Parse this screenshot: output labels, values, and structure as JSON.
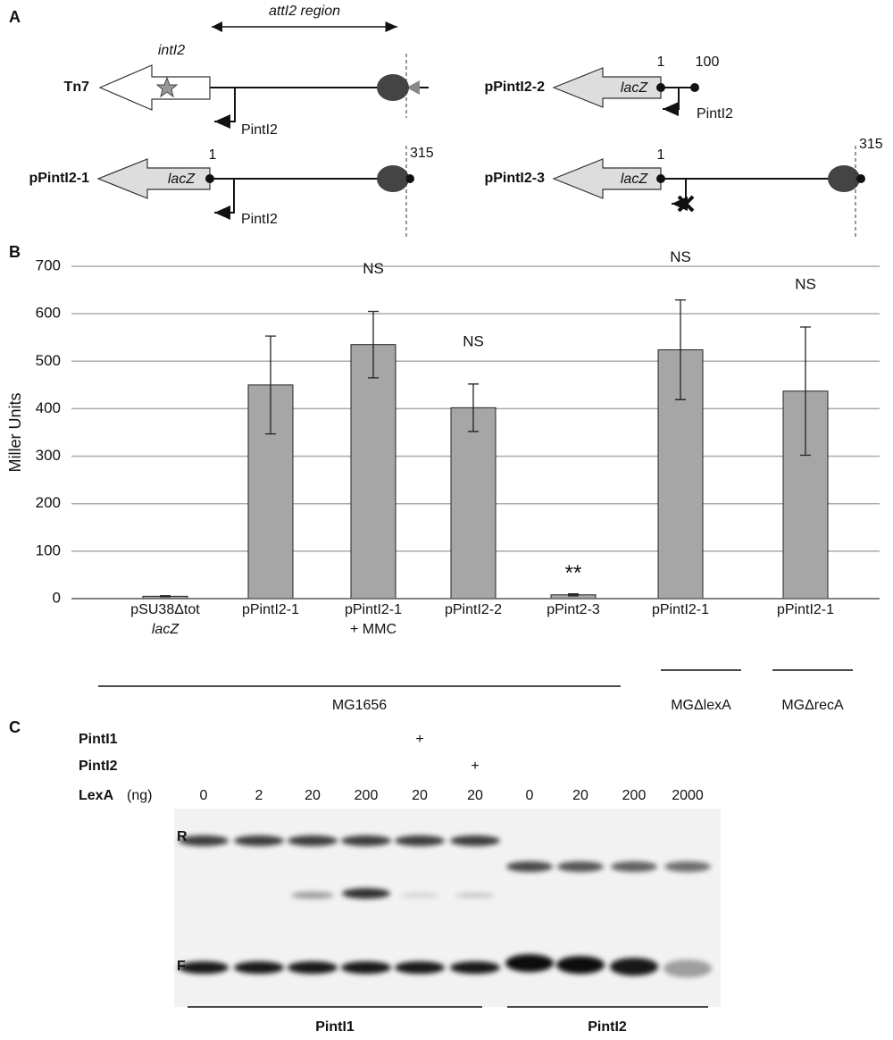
{
  "panel_a": {
    "label": "A",
    "region": "attI2 region",
    "constructs": [
      {
        "name": "Tn7",
        "gene": "intI2",
        "promoter": "PintI2"
      },
      {
        "name": "pPintI2-1",
        "gene": "lacZ",
        "promoter": "PintI2",
        "start": 1,
        "end": 315
      },
      {
        "name": "pPintI2-2",
        "gene": "lacZ",
        "promoter": "PintI2",
        "start": 1,
        "end": 100
      },
      {
        "name": "pPintI2-3",
        "gene": "lacZ",
        "start": 1,
        "end": 315
      }
    ]
  },
  "chart_data": {
    "type": "bar",
    "label": "B",
    "ylabel": "Miller Units",
    "categories": [
      [
        "pSU38Δtot",
        "lacZ"
      ],
      [
        "pPintI2-1"
      ],
      [
        "pPintI2-1",
        "+ MMC"
      ],
      [
        "pPintI2-2"
      ],
      [
        "pPint2-3"
      ],
      [
        "pPintI2-1"
      ],
      [
        "pPintI2-1"
      ]
    ],
    "values": [
      5,
      450,
      535,
      402,
      8,
      524,
      437
    ],
    "errors": [
      1,
      103,
      70,
      50,
      2,
      105,
      135
    ],
    "annotations": [
      null,
      null,
      "NS",
      "NS",
      "**",
      "NS",
      "NS"
    ],
    "groups": [
      "MG1656",
      "MGΔlexA",
      "MGΔrecA"
    ],
    "color": "#a6a6a6",
    "ylim": [
      0,
      700
    ],
    "yticks": [
      0,
      100,
      200,
      300,
      400,
      500,
      600,
      700
    ],
    "grid": true
  },
  "panel_c": {
    "label": "C",
    "rows": [
      {
        "name": "PintI1",
        "marks": [
          null,
          null,
          null,
          null,
          "+",
          null,
          null,
          null,
          null,
          null
        ]
      },
      {
        "name": "PintI2",
        "marks": [
          null,
          null,
          null,
          null,
          null,
          "+",
          null,
          null,
          null,
          null
        ]
      }
    ],
    "lexa": {
      "name": "LexA",
      "unit": "(ng)",
      "amounts": [
        0,
        2,
        20,
        200,
        20,
        20,
        0,
        20,
        200,
        2000
      ]
    },
    "bands": [
      "R",
      "F"
    ],
    "groups": [
      "PintI1",
      "PintI2"
    ]
  }
}
